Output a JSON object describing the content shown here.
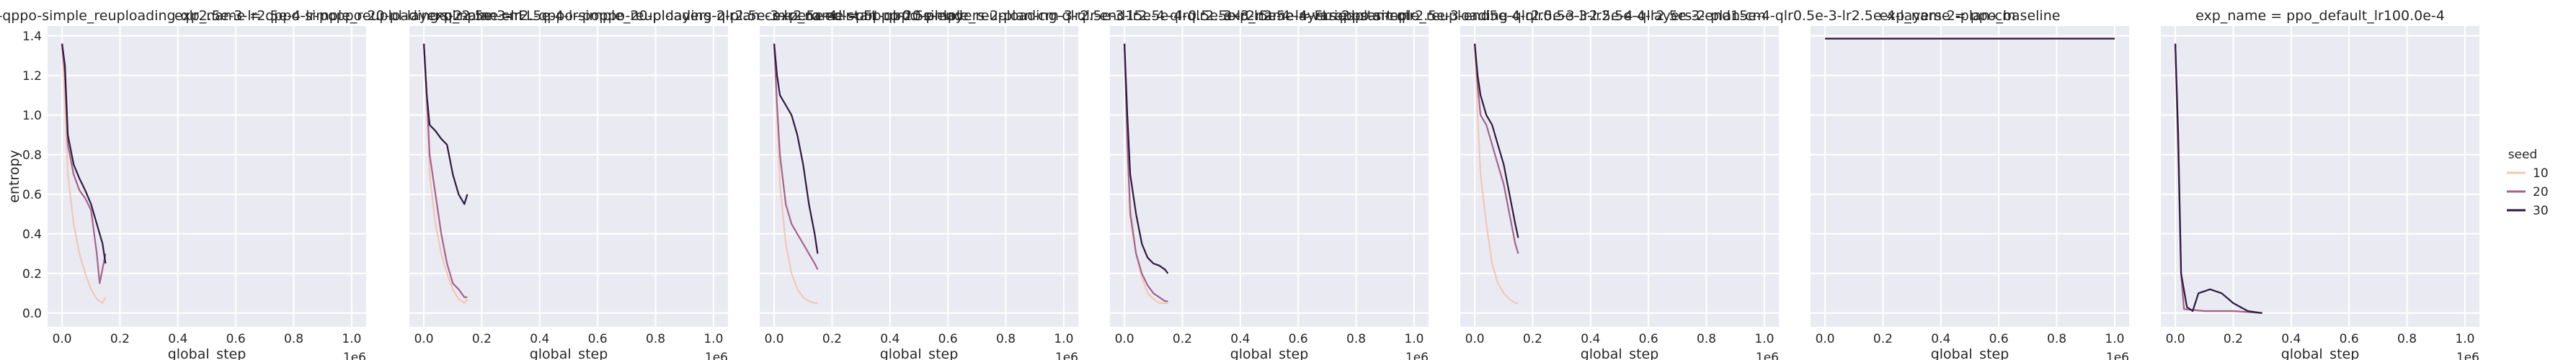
{
  "chart_data": {
    "type": "line",
    "shared": {
      "xlabel": "global_step",
      "ylabel": "entropy",
      "x_offset_label": "1e6",
      "xlim": [
        -0.05,
        1.05
      ],
      "ylim": [
        -0.07,
        1.45
      ],
      "x_ticks": [
        "0.0",
        "0.2",
        "0.4",
        "0.6",
        "0.8",
        "1.0"
      ],
      "y_ticks": [
        "0.0",
        "0.2",
        "0.4",
        "0.6",
        "0.8",
        "1.0",
        "1.2",
        "1.4"
      ],
      "grid": true,
      "legend_title": "seed",
      "legend_entries": [
        "10",
        "20",
        "30"
      ],
      "legend_position": "right",
      "colors": {
        "10": "#f1c8b8",
        "20": "#a5638d",
        "30": "#2d1a3f"
      }
    },
    "panels": [
      {
        "title": "exp_name = FL-qppo-simple_reuploading-qlr2.5e-3-lr2.5e-4-lr-poppo-20-pl-layers-2-plan-cm",
        "series": [
          {
            "name": "10",
            "points": [
              [
                0.0,
                1.36
              ],
              [
                0.01,
                1.05
              ],
              [
                0.02,
                0.7
              ],
              [
                0.04,
                0.45
              ],
              [
                0.06,
                0.3
              ],
              [
                0.08,
                0.2
              ],
              [
                0.1,
                0.12
              ],
              [
                0.12,
                0.07
              ],
              [
                0.14,
                0.05
              ],
              [
                0.15,
                0.08
              ]
            ]
          },
          {
            "name": "20",
            "points": [
              [
                0.0,
                1.36
              ],
              [
                0.01,
                1.2
              ],
              [
                0.02,
                0.85
              ],
              [
                0.04,
                0.7
              ],
              [
                0.06,
                0.62
              ],
              [
                0.08,
                0.58
              ],
              [
                0.1,
                0.52
              ],
              [
                0.12,
                0.3
              ],
              [
                0.13,
                0.15
              ],
              [
                0.15,
                0.3
              ]
            ]
          },
          {
            "name": "30",
            "points": [
              [
                0.0,
                1.36
              ],
              [
                0.01,
                1.25
              ],
              [
                0.02,
                0.9
              ],
              [
                0.04,
                0.75
              ],
              [
                0.06,
                0.68
              ],
              [
                0.08,
                0.62
              ],
              [
                0.1,
                0.55
              ],
              [
                0.12,
                0.45
              ],
              [
                0.14,
                0.35
              ],
              [
                0.15,
                0.25
              ]
            ]
          }
        ]
      },
      {
        "title": "exp_name = qppo-simple_reuploading-qlr2.5e-3-lr2.5e-4-lr-poppo-20-pl-layers-2-plan-cm-zero-ed-start-qlr0.5e-end",
        "series": [
          {
            "name": "10",
            "points": [
              [
                0.0,
                1.36
              ],
              [
                0.01,
                1.05
              ],
              [
                0.02,
                0.7
              ],
              [
                0.04,
                0.45
              ],
              [
                0.06,
                0.3
              ],
              [
                0.08,
                0.2
              ],
              [
                0.1,
                0.12
              ],
              [
                0.12,
                0.07
              ],
              [
                0.14,
                0.05
              ],
              [
                0.15,
                0.07
              ]
            ]
          },
          {
            "name": "20",
            "points": [
              [
                0.0,
                1.36
              ],
              [
                0.01,
                1.1
              ],
              [
                0.02,
                0.8
              ],
              [
                0.04,
                0.6
              ],
              [
                0.06,
                0.4
              ],
              [
                0.08,
                0.25
              ],
              [
                0.1,
                0.15
              ],
              [
                0.12,
                0.12
              ],
              [
                0.14,
                0.08
              ],
              [
                0.15,
                0.08
              ]
            ]
          },
          {
            "name": "30",
            "points": [
              [
                0.0,
                1.36
              ],
              [
                0.01,
                1.1
              ],
              [
                0.02,
                0.95
              ],
              [
                0.04,
                0.92
              ],
              [
                0.06,
                0.88
              ],
              [
                0.08,
                0.85
              ],
              [
                0.1,
                0.7
              ],
              [
                0.12,
                0.6
              ],
              [
                0.14,
                0.55
              ],
              [
                0.15,
                0.6
              ]
            ]
          }
        ]
      },
      {
        "title": "exp_name = FL-qppo-simple_reuploading-qlr2.5e-3-lr2.5e-4-lr-poppo-20-pl-layers-2-plan-cm-3-qlr-end15e-4-qlr0.5e-3-lr2.5e-4-layers-2-plan-cm",
        "series": [
          {
            "name": "10",
            "points": [
              [
                0.0,
                1.36
              ],
              [
                0.01,
                1.0
              ],
              [
                0.02,
                0.65
              ],
              [
                0.04,
                0.35
              ],
              [
                0.06,
                0.2
              ],
              [
                0.08,
                0.12
              ],
              [
                0.1,
                0.08
              ],
              [
                0.12,
                0.06
              ],
              [
                0.14,
                0.05
              ],
              [
                0.15,
                0.05
              ]
            ]
          },
          {
            "name": "20",
            "points": [
              [
                0.0,
                1.36
              ],
              [
                0.01,
                1.05
              ],
              [
                0.02,
                0.8
              ],
              [
                0.04,
                0.55
              ],
              [
                0.06,
                0.45
              ],
              [
                0.08,
                0.4
              ],
              [
                0.1,
                0.35
              ],
              [
                0.12,
                0.3
              ],
              [
                0.14,
                0.25
              ],
              [
                0.15,
                0.22
              ]
            ]
          },
          {
            "name": "30",
            "points": [
              [
                0.0,
                1.36
              ],
              [
                0.01,
                1.2
              ],
              [
                0.02,
                1.1
              ],
              [
                0.04,
                1.05
              ],
              [
                0.06,
                1.0
              ],
              [
                0.08,
                0.9
              ],
              [
                0.1,
                0.75
              ],
              [
                0.12,
                0.55
              ],
              [
                0.14,
                0.4
              ],
              [
                0.15,
                0.3
              ]
            ]
          }
        ]
      },
      {
        "title": "exp_name = FL-qppo-simple_reuploading-qlr2.5e-3-lr2.5e-4-qlr2.5e-3-lr2.5e-4-varied-start-qlr2.5e-3-end5e-4-qlr0.5e-3-lr2.5e-4-layers-2-plan-cm",
        "series": [
          {
            "name": "10",
            "points": [
              [
                0.0,
                1.36
              ],
              [
                0.01,
                0.9
              ],
              [
                0.02,
                0.55
              ],
              [
                0.04,
                0.3
              ],
              [
                0.06,
                0.18
              ],
              [
                0.08,
                0.1
              ],
              [
                0.1,
                0.07
              ],
              [
                0.12,
                0.05
              ],
              [
                0.14,
                0.05
              ],
              [
                0.15,
                0.05
              ]
            ]
          },
          {
            "name": "20",
            "points": [
              [
                0.0,
                1.36
              ],
              [
                0.01,
                0.85
              ],
              [
                0.02,
                0.5
              ],
              [
                0.04,
                0.3
              ],
              [
                0.06,
                0.2
              ],
              [
                0.08,
                0.14
              ],
              [
                0.1,
                0.1
              ],
              [
                0.12,
                0.08
              ],
              [
                0.14,
                0.06
              ],
              [
                0.15,
                0.06
              ]
            ]
          },
          {
            "name": "30",
            "points": [
              [
                0.0,
                1.36
              ],
              [
                0.01,
                1.0
              ],
              [
                0.02,
                0.7
              ],
              [
                0.04,
                0.5
              ],
              [
                0.06,
                0.35
              ],
              [
                0.08,
                0.28
              ],
              [
                0.1,
                0.25
              ],
              [
                0.12,
                0.24
              ],
              [
                0.14,
                0.22
              ],
              [
                0.15,
                0.2
              ]
            ]
          }
        ]
      },
      {
        "title": "exp_name = FL-qppo-simple_reuploading-qlr2.5e-3-lr2.5e-4-qlr2.5e-3-end15e-4-qlr0.5e-3-lr2.5e-4-layers-2-plan-cm",
        "series": [
          {
            "name": "10",
            "points": [
              [
                0.0,
                1.36
              ],
              [
                0.01,
                1.0
              ],
              [
                0.02,
                0.7
              ],
              [
                0.04,
                0.45
              ],
              [
                0.06,
                0.25
              ],
              [
                0.08,
                0.15
              ],
              [
                0.1,
                0.1
              ],
              [
                0.12,
                0.07
              ],
              [
                0.14,
                0.05
              ],
              [
                0.15,
                0.05
              ]
            ]
          },
          {
            "name": "20",
            "points": [
              [
                0.0,
                1.36
              ],
              [
                0.01,
                1.15
              ],
              [
                0.02,
                1.0
              ],
              [
                0.04,
                0.95
              ],
              [
                0.06,
                0.85
              ],
              [
                0.08,
                0.75
              ],
              [
                0.1,
                0.65
              ],
              [
                0.12,
                0.5
              ],
              [
                0.14,
                0.35
              ],
              [
                0.15,
                0.3
              ]
            ]
          },
          {
            "name": "30",
            "points": [
              [
                0.0,
                1.36
              ],
              [
                0.01,
                1.2
              ],
              [
                0.02,
                1.1
              ],
              [
                0.04,
                1.0
              ],
              [
                0.06,
                0.95
              ],
              [
                0.08,
                0.85
              ],
              [
                0.1,
                0.75
              ],
              [
                0.12,
                0.6
              ],
              [
                0.14,
                0.45
              ],
              [
                0.15,
                0.38
              ]
            ]
          }
        ]
      },
      {
        "title": "exp_name = ppo_baseline",
        "series": [
          {
            "name": "10",
            "points": [
              [
                0.0,
                1.386
              ],
              [
                0.5,
                1.386
              ],
              [
                1.0,
                1.386
              ]
            ]
          },
          {
            "name": "20",
            "points": [
              [
                0.0,
                1.386
              ],
              [
                0.5,
                1.386
              ],
              [
                1.0,
                1.386
              ]
            ]
          },
          {
            "name": "30",
            "points": [
              [
                0.0,
                1.386
              ],
              [
                0.5,
                1.386
              ],
              [
                1.0,
                1.386
              ]
            ]
          }
        ]
      },
      {
        "title": "exp_name = ppo_default_lr100.0e-4",
        "series": [
          {
            "name": "10",
            "points": [
              [
                0.0,
                1.36
              ],
              [
                0.01,
                0.8
              ],
              [
                0.02,
                0.2
              ],
              [
                0.03,
                0.02
              ],
              [
                0.1,
                0.01
              ],
              [
                0.2,
                0.01
              ],
              [
                0.3,
                0.0
              ]
            ]
          },
          {
            "name": "20",
            "points": [
              [
                0.0,
                1.36
              ],
              [
                0.01,
                0.8
              ],
              [
                0.02,
                0.2
              ],
              [
                0.03,
                0.02
              ],
              [
                0.1,
                0.01
              ],
              [
                0.2,
                0.01
              ],
              [
                0.3,
                0.0
              ]
            ]
          },
          {
            "name": "30",
            "points": [
              [
                0.0,
                1.36
              ],
              [
                0.01,
                0.9
              ],
              [
                0.02,
                0.2
              ],
              [
                0.04,
                0.03
              ],
              [
                0.06,
                0.01
              ],
              [
                0.08,
                0.1
              ],
              [
                0.12,
                0.12
              ],
              [
                0.16,
                0.1
              ],
              [
                0.2,
                0.05
              ],
              [
                0.25,
                0.01
              ],
              [
                0.3,
                0.0
              ]
            ]
          }
        ]
      }
    ]
  }
}
